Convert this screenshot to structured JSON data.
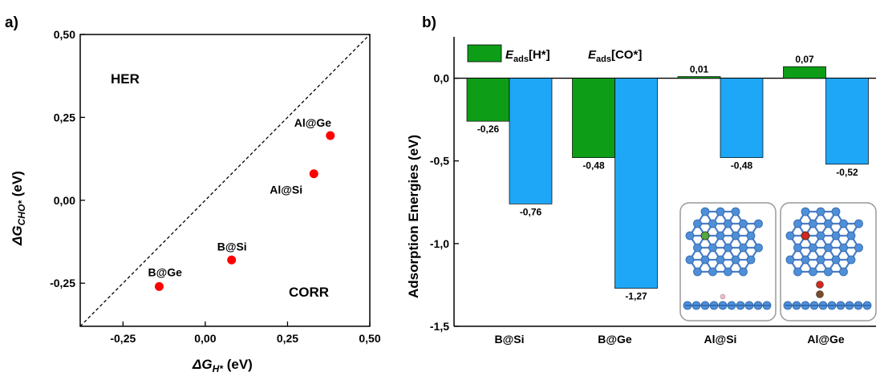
{
  "panels": {
    "a_label": "a)",
    "b_label": "b)"
  },
  "chart_data": [
    {
      "type": "scatter",
      "xlabel": "ΔG_H* (eV)",
      "xlabel_main": "ΔG",
      "xlabel_sub": "H*",
      "xlabel_unit": " (eV)",
      "ylabel": "ΔG_CHO* (eV)",
      "ylabel_main": "ΔG",
      "ylabel_sub": "CHO*",
      "ylabel_unit": " (eV)",
      "xlim": [
        -0.38,
        0.5
      ],
      "ylim": [
        -0.38,
        0.5
      ],
      "xticks": [
        -0.25,
        0.0,
        0.25,
        0.5
      ],
      "xtick_labels": [
        "-0,25",
        "0,00",
        "0,25",
        "0,50"
      ],
      "yticks": [
        -0.25,
        0.0,
        0.25,
        0.5
      ],
      "ytick_labels": [
        "-0,25",
        "0,00",
        "0,25",
        "0,50"
      ],
      "grid": false,
      "diagonal_line": "y = x (dashed)",
      "region_labels": [
        "HER",
        "CORR"
      ],
      "points": [
        {
          "label": "B@Ge",
          "x": -0.14,
          "y": -0.26
        },
        {
          "label": "B@Si",
          "x": 0.08,
          "y": -0.18
        },
        {
          "label": "Al@Si",
          "x": 0.33,
          "y": 0.08
        },
        {
          "label": "Al@Ge",
          "x": 0.38,
          "y": 0.195
        }
      ],
      "point_color": "#ff0000"
    },
    {
      "type": "bar",
      "ylabel": "Adsorption Energies (eV)",
      "ylim": [
        -1.5,
        0.25
      ],
      "yticks": [
        0.0,
        -0.5,
        -1.0,
        -1.5
      ],
      "ytick_labels": [
        "0,0",
        "-0,5",
        "-1,0",
        "-1,5"
      ],
      "categories": [
        "B@Si",
        "B@Ge",
        "Al@Si",
        "Al@Ge"
      ],
      "legend_position": "top-left",
      "series": [
        {
          "name": "E_ads[H*]",
          "name_main": "E",
          "name_sub": "ads",
          "name_rest": "[H*]",
          "color": "#0d9d17",
          "values": [
            -0.26,
            -0.48,
            0.01,
            0.07
          ],
          "value_labels": [
            "-0,26",
            "-0,48",
            "0,01",
            "0,07"
          ]
        },
        {
          "name": "E_ads[CO*]",
          "name_main": "E",
          "name_sub": "ads",
          "name_rest": "[CO*]",
          "color": "#1ea7f7",
          "values": [
            -0.76,
            -1.27,
            -0.48,
            -0.52
          ],
          "value_labels": [
            "-0,76",
            "-1,27",
            "-0,48",
            "-0,52"
          ]
        }
      ],
      "insets": [
        "Al@Si structure",
        "Al@Ge structure"
      ]
    }
  ]
}
